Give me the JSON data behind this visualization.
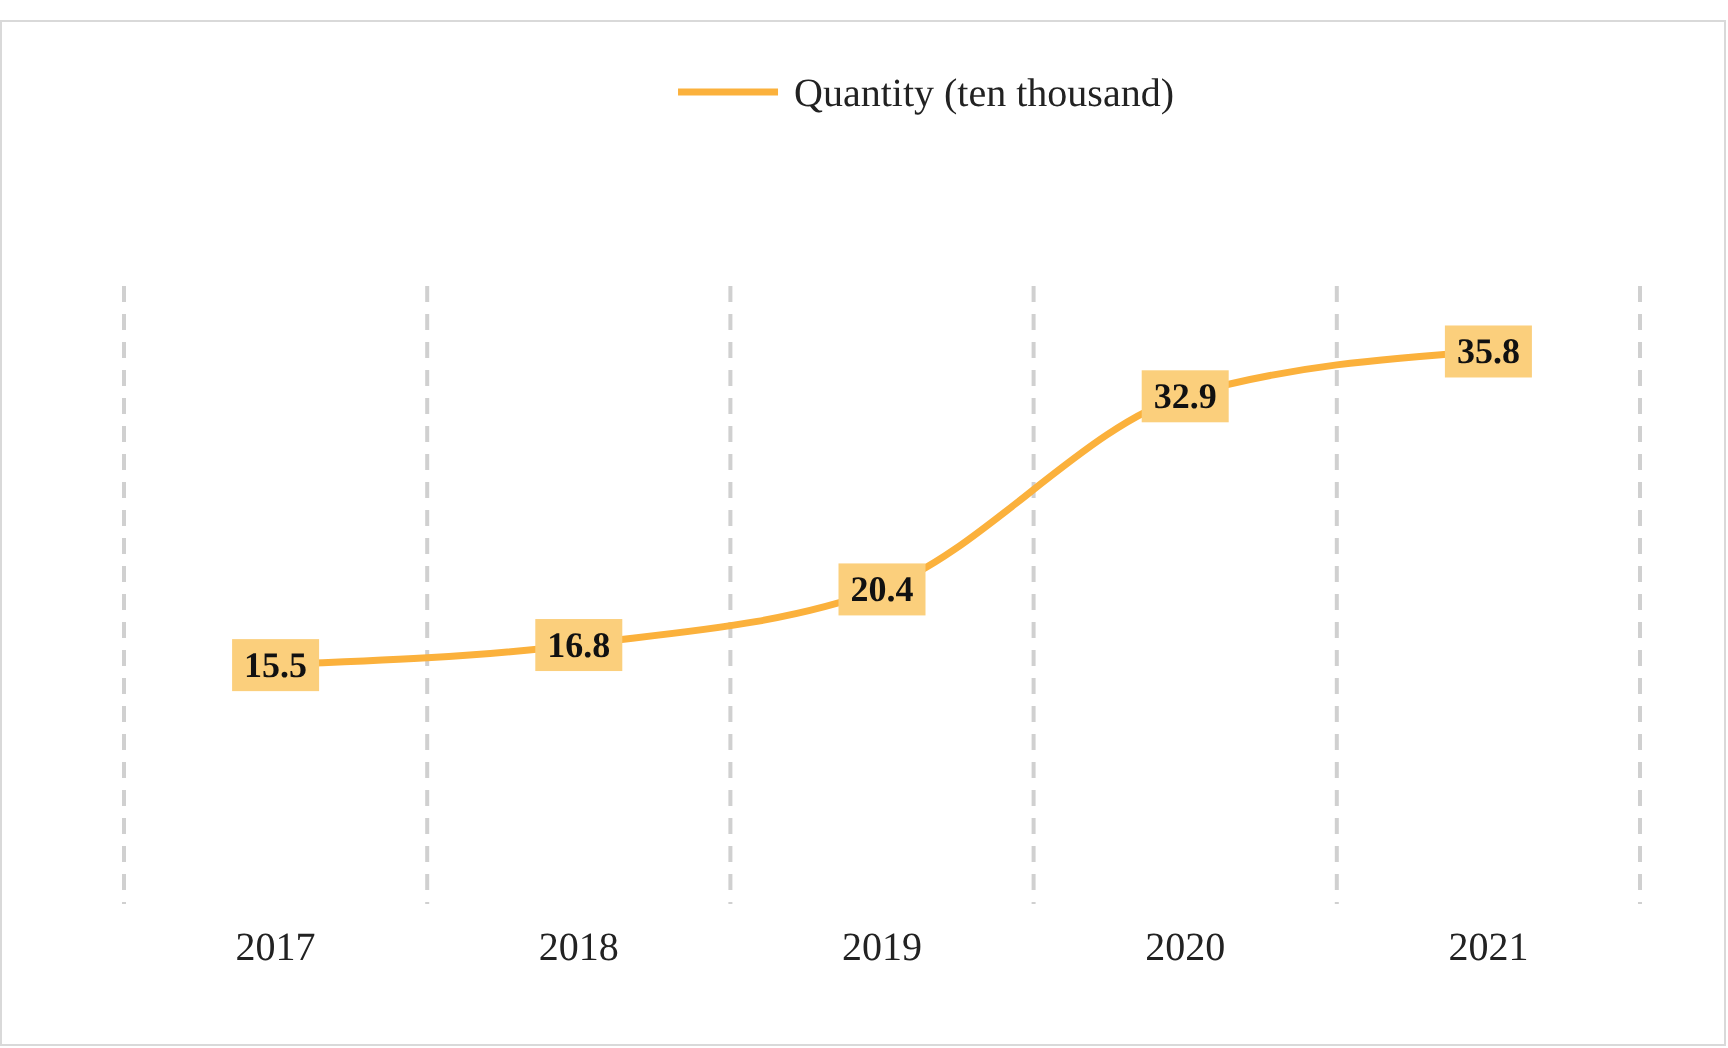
{
  "chart_data": {
    "type": "line",
    "categories": [
      "2017",
      "2018",
      "2019",
      "2020",
      "2021"
    ],
    "series": [
      {
        "name": "Quantity (ten thousand)",
        "color": "#fbb13c",
        "values": [
          15.5,
          16.8,
          20.4,
          32.9,
          35.8
        ]
      }
    ],
    "ylim": [
      0,
      40
    ],
    "data_labels": true,
    "grid": "x",
    "legend": "top",
    "tick_labels": "x",
    "marker": "square"
  }
}
